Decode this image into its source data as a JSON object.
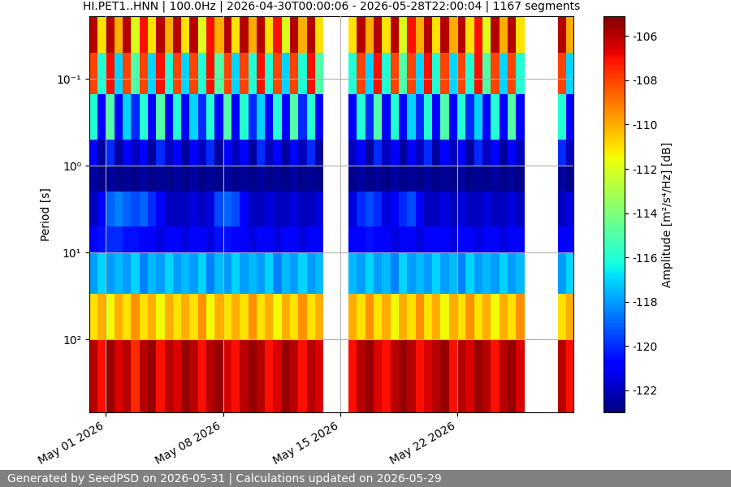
{
  "chart_data": {
    "type": "heatmap",
    "title": "HI.PET1..HNN | 100.0Hz | 2026-04-30T00:00:06 - 2026-05-28T22:00:04 | 1167 segments",
    "y_label": "Period [s]",
    "footer": "Generated by SeedPSD on 2026-05-31 | Calculations updated on 2026-05-29",
    "log": "y",
    "grid": true,
    "xlim": [
      "2026-04-30T00:00:06",
      "2026-05-28T22:00:04"
    ],
    "xticks": [
      {
        "value": "2026-05-01",
        "label": "May 01 2026"
      },
      {
        "value": "2026-05-08",
        "label": "May 08 2026"
      },
      {
        "value": "2026-05-15",
        "label": "May 15 2026"
      },
      {
        "value": "2026-05-22",
        "label": "May 22 2026"
      }
    ],
    "ylim": [
      690,
      0.019
    ],
    "yticks": [
      {
        "value": 0.1,
        "label": "10⁻¹"
      },
      {
        "value": 1,
        "label": "10⁰"
      },
      {
        "value": 10,
        "label": "10¹"
      },
      {
        "value": 100,
        "label": "10²"
      }
    ],
    "x_edges": [
      "2026-04-30T00:00",
      "2026-04-30T12:00",
      "2026-05-01T00:00",
      "2026-05-01T12:00",
      "2026-05-02T00:00",
      "2026-05-02T12:00",
      "2026-05-03T00:00",
      "2026-05-03T12:00",
      "2026-05-04T00:00",
      "2026-05-04T12:00",
      "2026-05-05T00:00",
      "2026-05-05T12:00",
      "2026-05-06T00:00",
      "2026-05-06T12:00",
      "2026-05-07T00:00",
      "2026-05-07T12:00",
      "2026-05-08T00:00",
      "2026-05-08T12:00",
      "2026-05-09T00:00",
      "2026-05-09T12:00",
      "2026-05-10T00:00",
      "2026-05-10T12:00",
      "2026-05-11T00:00",
      "2026-05-11T12:00",
      "2026-05-12T00:00",
      "2026-05-12T12:00",
      "2026-05-13T00:00",
      "2026-05-13T12:00",
      "2026-05-14T00:00",
      "2026-05-14T12:00",
      "2026-05-15T00:00",
      "2026-05-15T12:00",
      "2026-05-16T00:00",
      "2026-05-16T12:00",
      "2026-05-17T00:00",
      "2026-05-17T12:00",
      "2026-05-18T00:00",
      "2026-05-18T12:00",
      "2026-05-19T00:00",
      "2026-05-19T12:00",
      "2026-05-20T00:00",
      "2026-05-20T12:00",
      "2026-05-21T00:00",
      "2026-05-21T12:00",
      "2026-05-22T00:00",
      "2026-05-22T12:00",
      "2026-05-23T00:00",
      "2026-05-23T12:00",
      "2026-05-24T00:00",
      "2026-05-24T12:00",
      "2026-05-25T00:00",
      "2026-05-25T12:00",
      "2026-05-26T00:00",
      "2026-05-26T12:00",
      "2026-05-27T00:00",
      "2026-05-27T12:00",
      "2026-05-28T00:00",
      "2026-05-28T12:00",
      "2026-05-29T00:00"
    ],
    "y_edges": [
      0.019,
      0.05,
      0.15,
      0.5,
      1,
      2,
      5,
      10,
      30,
      100,
      690
    ],
    "cells": [
      [
        -106,
        -111,
        -106,
        -110,
        -106,
        -112,
        -107,
        -111,
        -106,
        -110,
        -106,
        -111,
        -106,
        -112,
        -107,
        -110,
        -106,
        -111,
        -106,
        -110,
        -106,
        -111,
        -107,
        -112,
        -106,
        -110,
        -106,
        -111,
        null,
        null,
        null,
        -111,
        -106,
        -110,
        -106,
        -111,
        -106,
        -112,
        -107,
        -110,
        -106,
        -111,
        -106,
        -110,
        -106,
        -111,
        -107,
        -112,
        -106,
        -110,
        -106,
        -111,
        null,
        null,
        null,
        null,
        -106,
        -110
      ],
      [
        -108,
        -116,
        -107,
        -117,
        -108,
        -115,
        -108,
        -117,
        -107,
        -116,
        -108,
        -117,
        -108,
        -116,
        -107,
        -115,
        -108,
        -117,
        -108,
        -116,
        -107,
        -116,
        -108,
        -117,
        -108,
        -116,
        -107,
        -115,
        null,
        null,
        null,
        -116,
        -108,
        -117,
        -107,
        -116,
        -108,
        -115,
        -108,
        -117,
        -107,
        -116,
        -108,
        -117,
        -108,
        -116,
        -107,
        -115,
        -108,
        -117,
        -108,
        -116,
        null,
        null,
        null,
        null,
        -108,
        -117
      ],
      [
        -116,
        -121,
        -115,
        -121,
        -117,
        -120,
        -116,
        -121,
        -115,
        -121,
        -116,
        -121,
        -117,
        -120,
        -116,
        -121,
        -115,
        -121,
        -116,
        -120,
        -117,
        -121,
        -116,
        -121,
        -115,
        -120,
        -116,
        -121,
        null,
        null,
        null,
        -121,
        -116,
        -120,
        -115,
        -121,
        -116,
        -121,
        -117,
        -120,
        -116,
        -121,
        -115,
        -121,
        -116,
        -120,
        -117,
        -121,
        -116,
        -121,
        -115,
        -121,
        null,
        null,
        null,
        null,
        -116,
        -121
      ],
      [
        -121,
        -122.5,
        -120,
        -122.5,
        -121,
        -122,
        -121,
        -122.5,
        -120,
        -122,
        -121,
        -122.5,
        -121,
        -122,
        -120,
        -122.5,
        -121,
        -122,
        -121,
        -122.5,
        -120,
        -122,
        -121,
        -122.5,
        -121,
        -122,
        -120,
        -122.5,
        null,
        null,
        null,
        -122,
        -121,
        -122.5,
        -120,
        -122,
        -121,
        -122.5,
        -121,
        -122,
        -120,
        -122.5,
        -121,
        -122,
        -121,
        -122.5,
        -120,
        -122,
        -121,
        -122.5,
        -121,
        -122,
        null,
        null,
        null,
        null,
        -120,
        -122
      ],
      [
        -122.5,
        -122.8,
        -122.5,
        -122.8,
        -122.6,
        -122.8,
        -122.5,
        -122.8,
        -122.6,
        -122.8,
        -122.5,
        -122.8,
        -122.5,
        -122.8,
        -122.6,
        -122.8,
        -122.5,
        -122.8,
        -122.6,
        -122.8,
        -122.5,
        -122.8,
        -122.6,
        -122.8,
        -122.5,
        -122.8,
        -122.6,
        -122.8,
        null,
        null,
        null,
        -122.8,
        -122.5,
        -122.8,
        -122.6,
        -122.8,
        -122.5,
        -122.8,
        -122.6,
        -122.8,
        -122.5,
        -122.8,
        -122.6,
        -122.8,
        -122.5,
        -122.8,
        -122.6,
        -122.8,
        -122.5,
        -122.8,
        -122.6,
        -122.8,
        null,
        null,
        null,
        null,
        -122.5,
        -122.8
      ],
      [
        -122,
        -121,
        -119,
        -118.5,
        -119,
        -119.5,
        -119,
        -120,
        -121,
        -122,
        -122,
        -122,
        -121.5,
        -122,
        -121.5,
        -119.5,
        -119,
        -119.5,
        -121,
        -122,
        -122,
        -121.5,
        -122,
        -122,
        -121.5,
        -122,
        -122,
        -121.5,
        null,
        null,
        null,
        -121.5,
        -120,
        -119.5,
        -120,
        -121.5,
        -121,
        -120,
        -119.5,
        -121,
        -122,
        -122,
        -121.5,
        -122,
        -121.5,
        -122,
        -122,
        -121.5,
        -122,
        -122,
        -121.5,
        -122,
        null,
        null,
        null,
        null,
        -122,
        -121.5
      ],
      [
        -121,
        -120.5,
        -120,
        -120,
        -120.5,
        -120.5,
        -121,
        -121,
        -121.5,
        -121,
        -121,
        -121.5,
        -121,
        -121,
        -121.5,
        -120.5,
        -120.5,
        -121,
        -121,
        -121.5,
        -121,
        -121,
        -121.5,
        -121,
        -121,
        -121.5,
        -121,
        -121,
        null,
        null,
        null,
        -121,
        -121,
        -120.5,
        -121,
        -121,
        -121.5,
        -121,
        -121,
        -121.5,
        -121,
        -121,
        -121,
        -121.5,
        -121,
        -121,
        -121.5,
        -121,
        -121,
        -121.5,
        -121,
        -121,
        null,
        null,
        null,
        null,
        -121,
        -121
      ],
      [
        -118,
        -117,
        -118,
        -117.5,
        -118,
        -117,
        -118.5,
        -117.5,
        -118,
        -117,
        -118,
        -117.5,
        -118,
        -117,
        -118.5,
        -117.5,
        -118,
        -117,
        -118,
        -117.5,
        -118,
        -117,
        -118.5,
        -117.5,
        -118,
        -117,
        -118,
        -117.5,
        null,
        null,
        null,
        -117.5,
        -118,
        -117,
        -118,
        -117.5,
        -118.5,
        -117,
        -118,
        -117.5,
        -118,
        -117,
        -118,
        -117.5,
        -118.5,
        -117,
        -118,
        -117.5,
        -118,
        -117,
        -118,
        -117.5,
        null,
        null,
        null,
        null,
        -118,
        -117
      ],
      [
        -111,
        -110,
        -111.5,
        -110,
        -111,
        -109.5,
        -111,
        -110,
        -111.5,
        -110,
        -111,
        -110,
        -111,
        -109.5,
        -111.5,
        -110,
        -111,
        -110,
        -111,
        -109.5,
        -111,
        -110,
        -111.5,
        -110,
        -111,
        -109.5,
        -111,
        -110,
        null,
        null,
        null,
        -110,
        -111,
        -109.5,
        -111,
        -110,
        -111.5,
        -110,
        -111,
        -109.5,
        -111,
        -110,
        -111.5,
        -110,
        -111,
        -109.5,
        -111,
        -110,
        -111.5,
        -110,
        -111,
        -109.5,
        null,
        null,
        null,
        null,
        -111,
        -110
      ],
      [
        -106,
        -107,
        -105.5,
        -106.5,
        -106,
        -107.5,
        -106,
        -105.5,
        -107,
        -106,
        -106.5,
        -105.5,
        -106,
        -107,
        -106,
        -105.5,
        -106.5,
        -107,
        -106,
        -105.5,
        -106,
        -107,
        -106.5,
        -105.5,
        -106,
        -107,
        -106,
        -106.5,
        null,
        null,
        null,
        -107,
        -106,
        -105.5,
        -106.5,
        -107,
        -106,
        -105.5,
        -106,
        -107,
        -106.5,
        -106,
        -105.5,
        -107,
        -106,
        -106.5,
        -105.5,
        -106,
        -107,
        -106,
        -105.5,
        -106.5,
        null,
        null,
        null,
        null,
        -106,
        -107
      ]
    ],
    "colorbar": {
      "label": "Amplitude [m²/s⁴/Hz] [dB]",
      "lim": [
        -123,
        -105.1
      ],
      "ticks": [
        -106,
        -108,
        -110,
        -112,
        -114,
        -116,
        -118,
        -120,
        -122
      ]
    }
  }
}
